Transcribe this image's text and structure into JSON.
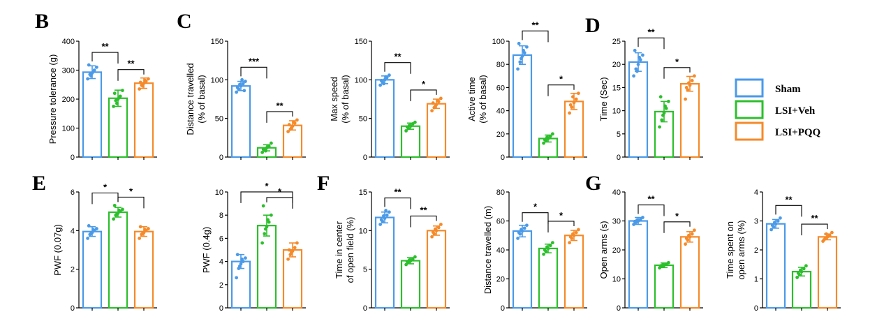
{
  "groups": [
    {
      "name": "Sham",
      "color": "#4a9ae8"
    },
    {
      "name": "LSI+Veh",
      "color": "#2cbf2c"
    },
    {
      "name": "LSI+PQQ",
      "color": "#f58a2a"
    }
  ],
  "panel_letters": {
    "B": "B",
    "C": "C",
    "D": "D",
    "E": "E",
    "F": "F",
    "G": "G"
  },
  "chart_data": [
    {
      "type": "bar",
      "panel": "B",
      "title": "",
      "ylabel": [
        "Pressure tolerance (g)"
      ],
      "categories": [
        "Sham",
        "LSI+Veh",
        "LSI+PQQ"
      ],
      "values": [
        293,
        203,
        255
      ],
      "errors": [
        22,
        28,
        18
      ],
      "ylim": [
        0,
        400
      ],
      "yticks": [
        0,
        100,
        200,
        300,
        400
      ],
      "points": [
        [
          270,
          285,
          290,
          300,
          310,
          318,
          280,
          295
        ],
        [
          175,
          195,
          200,
          210,
          230,
          220,
          185,
          205
        ],
        [
          235,
          248,
          255,
          262,
          270,
          258,
          245,
          265
        ]
      ],
      "significance": [
        {
          "from": 0,
          "to": 1,
          "label": "**"
        },
        {
          "from": 1,
          "to": 2,
          "label": "**"
        }
      ]
    },
    {
      "type": "bar",
      "panel": "C1",
      "title": "",
      "ylabel": [
        "Distance travelled",
        "(% of basal)"
      ],
      "categories": [
        "Sham",
        "LSI+Veh",
        "LSI+PQQ"
      ],
      "values": [
        92,
        12,
        41
      ],
      "errors": [
        6,
        4,
        6
      ],
      "ylim": [
        0,
        150
      ],
      "yticks": [
        0,
        50,
        100,
        150
      ],
      "points": [
        [
          84,
          88,
          92,
          95,
          98,
          90,
          94,
          100,
          86
        ],
        [
          6,
          9,
          12,
          14,
          18,
          10,
          8,
          13
        ],
        [
          33,
          36,
          40,
          44,
          48,
          42,
          38,
          45
        ]
      ],
      "significance": [
        {
          "from": 0,
          "to": 1,
          "label": "***"
        },
        {
          "from": 1,
          "to": 2,
          "label": "**"
        }
      ]
    },
    {
      "type": "bar",
      "panel": "C2",
      "title": "",
      "ylabel": [
        "Max speed",
        "(% of basal)"
      ],
      "categories": [
        "Sham",
        "LSI+Veh",
        "LSI+PQQ"
      ],
      "values": [
        100,
        40,
        69
      ],
      "errors": [
        5,
        4,
        6
      ],
      "ylim": [
        0,
        150
      ],
      "yticks": [
        0,
        50,
        100,
        150
      ],
      "points": [
        [
          93,
          97,
          100,
          103,
          106,
          99,
          95,
          104
        ],
        [
          34,
          37,
          40,
          43,
          45,
          39,
          41
        ],
        [
          60,
          64,
          68,
          72,
          76,
          70,
          66,
          73
        ]
      ],
      "significance": [
        {
          "from": 0,
          "to": 1,
          "label": "**"
        },
        {
          "from": 1,
          "to": 2,
          "label": "*"
        }
      ]
    },
    {
      "type": "bar",
      "panel": "C3",
      "title": "",
      "ylabel": [
        "Active time",
        "(% of basal)"
      ],
      "categories": [
        "Sham",
        "LSI+Veh",
        "LSI+PQQ"
      ],
      "values": [
        88,
        16,
        48
      ],
      "errors": [
        8,
        3,
        7
      ],
      "ylim": [
        0,
        100
      ],
      "yticks": [
        0,
        20,
        40,
        60,
        80,
        100
      ],
      "points": [
        [
          76,
          82,
          87,
          90,
          95,
          98,
          85,
          92
        ],
        [
          12,
          14,
          16,
          18,
          20,
          15,
          17
        ],
        [
          38,
          43,
          47,
          50,
          55,
          45,
          52
        ]
      ],
      "significance": [
        {
          "from": 0,
          "to": 1,
          "label": "**"
        },
        {
          "from": 1,
          "to": 2,
          "label": "*"
        }
      ]
    },
    {
      "type": "bar",
      "panel": "D",
      "title": "",
      "ylabel": [
        "Time (Sec)"
      ],
      "categories": [
        "Sham",
        "LSI+Veh",
        "LSI+PQQ"
      ],
      "values": [
        20.5,
        9.8,
        15.8
      ],
      "errors": [
        2,
        2.2,
        1.6
      ],
      "ylim": [
        0,
        25
      ],
      "yticks": [
        0,
        5,
        10,
        15,
        20,
        25
      ],
      "points": [
        [
          17.5,
          19,
          20,
          21,
          22,
          23,
          18.5,
          21.5
        ],
        [
          6.5,
          8,
          9.5,
          10.5,
          12,
          13,
          9,
          11
        ],
        [
          12.5,
          14.5,
          15.5,
          16.5,
          17.5,
          15,
          16
        ]
      ],
      "significance": [
        {
          "from": 0,
          "to": 1,
          "label": "**"
        },
        {
          "from": 1,
          "to": 2,
          "label": "*"
        }
      ]
    },
    {
      "type": "bar",
      "panel": "E1",
      "title": "",
      "ylabel": [
        "PWF (0.07g)"
      ],
      "categories": [
        "Sham",
        "LSI+Veh",
        "LSI+PQQ"
      ],
      "values": [
        3.95,
        4.95,
        3.95
      ],
      "errors": [
        0.25,
        0.25,
        0.25
      ],
      "ylim": [
        0,
        6
      ],
      "yticks": [
        0,
        2,
        4,
        6
      ],
      "points": [
        [
          3.6,
          3.8,
          3.9,
          4.0,
          4.1,
          4.25,
          3.85,
          4.05
        ],
        [
          4.6,
          4.8,
          4.9,
          5.0,
          5.1,
          5.3,
          4.85,
          5.05
        ],
        [
          3.6,
          3.8,
          3.9,
          4.0,
          4.1,
          4.2,
          3.85,
          4.05
        ]
      ],
      "significance": [
        {
          "from": 0,
          "to": 1,
          "label": "*"
        },
        {
          "from": 1,
          "to": 2,
          "label": "*"
        }
      ]
    },
    {
      "type": "bar",
      "panel": "E2",
      "title": "",
      "ylabel": [
        "PWF (0.4g)"
      ],
      "categories": [
        "Sham",
        "LSI+Veh",
        "LSI+PQQ"
      ],
      "values": [
        4.0,
        7.1,
        5.0
      ],
      "errors": [
        0.6,
        0.9,
        0.6
      ],
      "ylim": [
        0,
        10
      ],
      "yticks": [
        0,
        2,
        4,
        6,
        8,
        10
      ],
      "points": [
        [
          2.6,
          3.4,
          3.8,
          4.0,
          4.3,
          4.6,
          3.6,
          4.2
        ],
        [
          5.6,
          6.4,
          7.0,
          7.4,
          8.0,
          8.8,
          6.8,
          7.6
        ],
        [
          4.2,
          4.6,
          4.9,
          5.2,
          5.6,
          5.0,
          4.8
        ]
      ],
      "significance": [
        {
          "from": 0,
          "to": 2,
          "label": "*"
        },
        {
          "from": 1,
          "to": 2,
          "label": "*"
        }
      ]
    },
    {
      "type": "bar",
      "panel": "F1",
      "title": "",
      "ylabel": [
        "Time in center",
        "of open field (%)"
      ],
      "categories": [
        "Sham",
        "LSI+Veh",
        "LSI+PQQ"
      ],
      "values": [
        11.7,
        6.1,
        10.0
      ],
      "errors": [
        0.7,
        0.4,
        0.6
      ],
      "ylim": [
        0,
        15
      ],
      "yticks": [
        0,
        5,
        10,
        15
      ],
      "points": [
        [
          10.8,
          11.2,
          11.6,
          12.0,
          12.4,
          11.4,
          11.9,
          12.6
        ],
        [
          5.6,
          5.9,
          6.1,
          6.3,
          6.6,
          6.0,
          6.2
        ],
        [
          9.2,
          9.6,
          10.0,
          10.4,
          10.8,
          9.8,
          10.2
        ]
      ],
      "significance": [
        {
          "from": 0,
          "to": 1,
          "label": "**"
        },
        {
          "from": 1,
          "to": 2,
          "label": "**"
        }
      ]
    },
    {
      "type": "bar",
      "panel": "F2",
      "title": "",
      "ylabel": [
        "Distance travelled (m)"
      ],
      "categories": [
        "Sham",
        "LSI+Veh",
        "LSI+PQQ"
      ],
      "values": [
        53,
        41,
        50
      ],
      "errors": [
        4,
        3,
        3.5
      ],
      "ylim": [
        0,
        80
      ],
      "yticks": [
        0,
        20,
        40,
        60,
        80
      ],
      "points": [
        [
          48,
          51,
          53,
          55,
          57,
          52,
          54
        ],
        [
          37,
          39,
          41,
          43,
          45,
          40,
          42
        ],
        [
          45,
          48,
          50,
          52,
          54,
          49,
          51
        ]
      ],
      "significance": [
        {
          "from": 0,
          "to": 1,
          "label": "*"
        },
        {
          "from": 1,
          "to": 2,
          "label": "*"
        }
      ]
    },
    {
      "type": "bar",
      "panel": "G1",
      "title": "",
      "ylabel": [
        "Open arms (s)"
      ],
      "categories": [
        "Sham",
        "LSI+Veh",
        "LSI+PQQ"
      ],
      "values": [
        30,
        14.7,
        24.5
      ],
      "errors": [
        1.2,
        0.8,
        1.8
      ],
      "ylim": [
        0,
        40
      ],
      "yticks": [
        0,
        10,
        20,
        30,
        40
      ],
      "points": [
        [
          28.8,
          29.5,
          30.0,
          30.5,
          31.2,
          29.8,
          30.3
        ],
        [
          13.8,
          14.3,
          14.7,
          15.1,
          15.6,
          14.5,
          14.9
        ],
        [
          22.0,
          23.5,
          24.5,
          25.5,
          26.8,
          24.0,
          25.0
        ]
      ],
      "significance": [
        {
          "from": 0,
          "to": 1,
          "label": "**"
        },
        {
          "from": 1,
          "to": 2,
          "label": "*"
        }
      ]
    },
    {
      "type": "bar",
      "panel": "G2",
      "title": "",
      "ylabel": [
        "Time spent on",
        "open arms (%)"
      ],
      "categories": [
        "Sham",
        "LSI+Veh",
        "LSI+PQQ"
      ],
      "values": [
        2.9,
        1.25,
        2.45
      ],
      "errors": [
        0.15,
        0.15,
        0.1
      ],
      "ylim": [
        0,
        4
      ],
      "yticks": [
        0,
        1,
        2,
        3,
        4
      ],
      "points": [
        [
          2.7,
          2.8,
          2.9,
          3.0,
          3.1,
          2.85,
          2.95
        ],
        [
          1.05,
          1.15,
          1.25,
          1.35,
          1.45,
          1.2,
          1.3
        ],
        [
          2.3,
          2.4,
          2.45,
          2.5,
          2.6,
          2.35,
          2.55
        ]
      ],
      "significance": [
        {
          "from": 0,
          "to": 1,
          "label": "**"
        },
        {
          "from": 1,
          "to": 2,
          "label": "**"
        }
      ]
    }
  ]
}
